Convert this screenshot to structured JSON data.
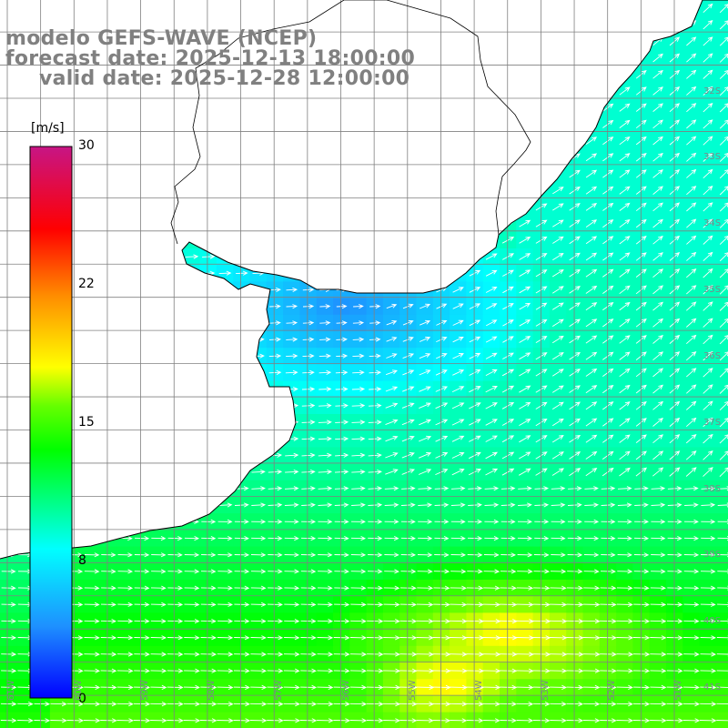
{
  "title": {
    "line1": "modelo GEFS-WAVE (NCEP)",
    "line2": "forecast date: 2025-12-13 18:00:00",
    "line3": "valid date: 2025-12-28 12:00:00"
  },
  "colorbar": {
    "unit": "[m/s]",
    "ticks": [
      "30",
      "22",
      "15",
      "8",
      "0"
    ],
    "tick_values": [
      30,
      22,
      15,
      8,
      0
    ],
    "range": [
      0,
      30
    ],
    "stops": [
      "#0000ff",
      "#1e90ff",
      "#00ffff",
      "#00ff00",
      "#ffff00",
      "#ff8c00",
      "#ff0000",
      "#c71585"
    ]
  },
  "map": {
    "land_color": "#ffffff",
    "grid_color": "#808080",
    "coast_color": "#000000",
    "arrow_color": "#ffffff",
    "lat_labels": [
      "32S",
      "33S",
      "34S",
      "35S",
      "36S",
      "37S",
      "38S",
      "39S",
      "40S",
      "41S"
    ],
    "lat_values": [
      -32,
      -33,
      -34,
      -35,
      -36,
      -37,
      -38,
      -39,
      -40,
      -41
    ],
    "lon_labels": [
      "61W",
      "60W",
      "59W",
      "58W",
      "57W",
      "56W",
      "55W",
      "54W",
      "53W",
      "52W",
      "51W"
    ],
    "lon_values": [
      -61,
      -60,
      -59,
      -58,
      -57,
      -56,
      -55,
      -54,
      -53,
      -52,
      -51
    ],
    "lon_extent": [
      -61.4,
      -50.7
    ],
    "lat_extent": [
      -31.0,
      -41.4
    ],
    "wind_speed_regions": [
      {
        "area": "Rio de la Plata estuary",
        "speed_ms": 5
      },
      {
        "area": "Uruguay / southern Brazil shelf",
        "speed_ms": 8
      },
      {
        "area": "offshore Buenos Aires",
        "speed_ms": 11
      },
      {
        "area": "south-east open ocean near 40S-41S 54W",
        "speed_ms": 17
      }
    ],
    "wind_direction": "south-westerly to westerly flow"
  }
}
